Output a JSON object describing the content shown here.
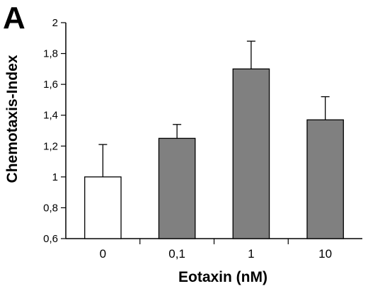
{
  "panel_label": "A",
  "chart_data": {
    "type": "bar",
    "title": "",
    "xlabel": "Eotaxin (nM)",
    "ylabel": "Chemotaxis-Index",
    "categories": [
      "0",
      "0,1",
      "1",
      "10"
    ],
    "values": [
      1.0,
      1.25,
      1.7,
      1.37
    ],
    "error_upper": [
      0.21,
      0.09,
      0.18,
      0.15
    ],
    "bar_fill": [
      "#ffffff",
      "#808080",
      "#808080",
      "#808080"
    ],
    "ylim": [
      0.6,
      2.0
    ],
    "yticks": [
      "0,6",
      "0,8",
      "1",
      "1,2",
      "1,4",
      "1,6",
      "1,8",
      "2"
    ],
    "ytick_values": [
      0.6,
      0.8,
      1.0,
      1.2,
      1.4,
      1.6,
      1.8,
      2.0
    ],
    "grid": false,
    "legend": "none"
  }
}
